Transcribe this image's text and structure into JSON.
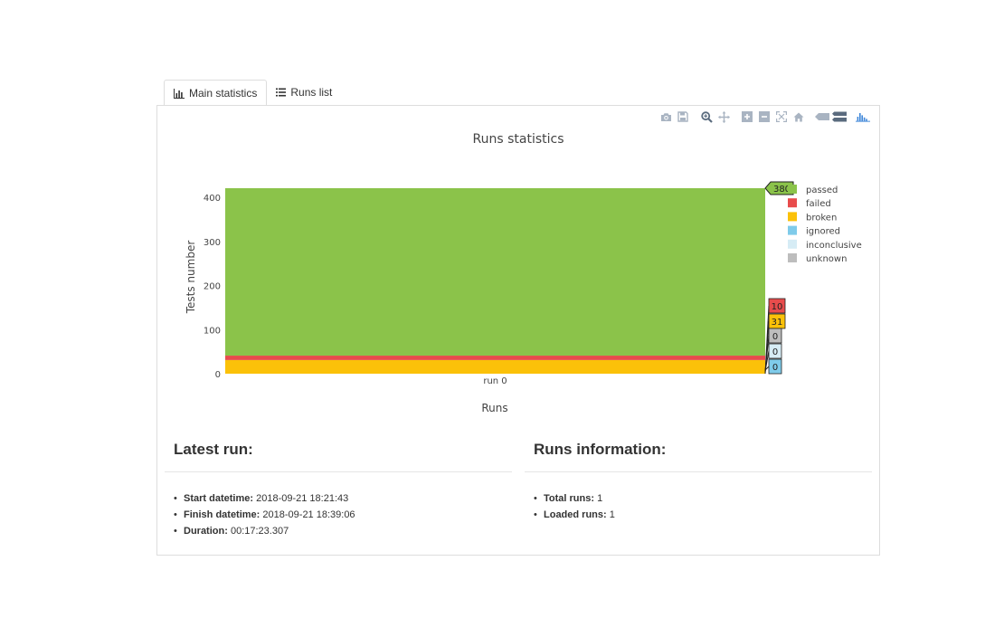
{
  "tabs": [
    {
      "label": "Main statistics",
      "active": true,
      "icon": "bar-chart-icon"
    },
    {
      "label": "Runs list",
      "active": false,
      "icon": "list-icon"
    }
  ],
  "modebar": [
    "camera-icon",
    "save-icon",
    "zoom-icon",
    "pan-icon",
    "zoom-in-icon",
    "zoom-out-icon",
    "autoscale-icon",
    "home-icon",
    "hover-closest-icon",
    "hover-compare-icon",
    "plotly-logo-icon"
  ],
  "chart_data": {
    "type": "bar",
    "stacked": true,
    "title": "Runs statistics",
    "xlabel": "Runs",
    "ylabel": "Tests number",
    "categories": [
      "run 0"
    ],
    "ylim": [
      0,
      421
    ],
    "yticks": [
      0,
      100,
      200,
      300,
      400
    ],
    "legend_position": "right",
    "series": [
      {
        "name": "passed",
        "values": [
          380
        ],
        "color": "#8bc34a"
      },
      {
        "name": "failed",
        "values": [
          10
        ],
        "color": "#e84c4c"
      },
      {
        "name": "broken",
        "values": [
          31
        ],
        "color": "#fbc109"
      },
      {
        "name": "ignored",
        "values": [
          0
        ],
        "color": "#7fcbea"
      },
      {
        "name": "inconclusive",
        "values": [
          0
        ],
        "color": "#d6ecf5"
      },
      {
        "name": "unknown",
        "values": [
          0
        ],
        "color": "#bdbdbd"
      }
    ],
    "hover_labels": [
      {
        "series": "passed",
        "text": "380"
      },
      {
        "series": "failed",
        "text": "10"
      },
      {
        "series": "broken",
        "text": "31"
      },
      {
        "series": "unknown",
        "text": "0"
      },
      {
        "series": "inconclusive",
        "text": "0"
      },
      {
        "series": "ignored",
        "text": "0"
      }
    ]
  },
  "latest_run": {
    "heading": "Latest run:",
    "items": [
      {
        "label": "Start datetime:",
        "value": "2018-09-21 18:21:43"
      },
      {
        "label": "Finish datetime:",
        "value": "2018-09-21 18:39:06"
      },
      {
        "label": "Duration:",
        "value": "00:17:23.307"
      }
    ]
  },
  "runs_info": {
    "heading": "Runs information:",
    "items": [
      {
        "label": "Total runs:",
        "value": "1"
      },
      {
        "label": "Loaded runs:",
        "value": "1"
      }
    ]
  }
}
